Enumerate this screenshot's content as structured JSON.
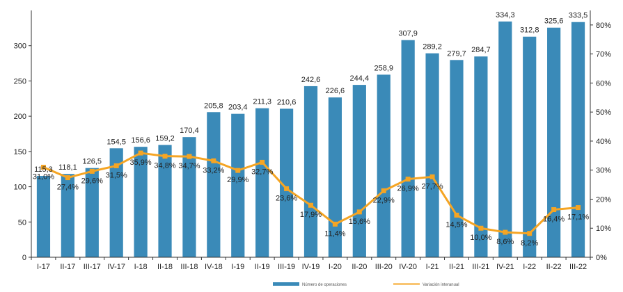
{
  "chart_data": {
    "type": "bar",
    "categories": [
      "I-17",
      "II-17",
      "III-17",
      "IV-17",
      "I-18",
      "II-18",
      "III-18",
      "IV-18",
      "I-19",
      "II-19",
      "III-19",
      "IV-19",
      "I-20",
      "II-20",
      "III-20",
      "IV-20",
      "I-21",
      "II-21",
      "III-21",
      "IV-21",
      "I-22",
      "II-22",
      "III-22"
    ],
    "series": [
      {
        "name": "Número de operaciones",
        "type": "bar",
        "axis": "left",
        "color": "#3A8AB8",
        "values": [
          115.3,
          118.1,
          126.5,
          154.5,
          156.6,
          159.2,
          170.4,
          205.8,
          203.4,
          211.3,
          210.6,
          242.6,
          226.6,
          244.4,
          258.9,
          307.9,
          289.2,
          279.7,
          284.7,
          334.3,
          312.8,
          325.6,
          333.5
        ],
        "labels": [
          "115,3",
          "118,1",
          "126,5",
          "154,5",
          "156,6",
          "159,2",
          "170,4",
          "205,8",
          "203,4",
          "211,3",
          "210,6",
          "242,6",
          "226,6",
          "244,4",
          "258,9",
          "307,9",
          "289,2",
          "279,7",
          "284,7",
          "334,3",
          "312,8",
          "325,6",
          "333,5"
        ]
      },
      {
        "name": "Variación interanual",
        "type": "line",
        "axis": "right",
        "color": "#F5A524",
        "values": [
          31.0,
          27.4,
          29.6,
          31.5,
          35.9,
          34.8,
          34.7,
          33.2,
          29.9,
          32.7,
          23.6,
          17.9,
          11.4,
          15.6,
          22.9,
          26.9,
          27.7,
          14.5,
          10.0,
          8.6,
          8.2,
          16.4,
          17.1
        ],
        "labels": [
          "31,0%",
          "27,4%",
          "29,6%",
          "31,5%",
          "35,9%",
          "34,8%",
          "34,7%",
          "33,2%",
          "29,9%",
          "32,7%",
          "23,6%",
          "17,9%",
          "11,4%",
          "15,6%",
          "22,9%",
          "26,9%",
          "27,7%",
          "14,5%",
          "10,0%",
          "8,6%",
          "8,2%",
          "16,4%",
          "17,1%"
        ]
      }
    ],
    "left_axis": {
      "min": 0,
      "max": 350,
      "ticks": [
        0,
        50,
        100,
        150,
        200,
        250,
        300
      ],
      "tick_labels": [
        "0",
        "50",
        "100",
        "150",
        "200",
        "250",
        "300"
      ]
    },
    "right_axis": {
      "min": 0,
      "max": 85,
      "ticks": [
        0,
        10,
        20,
        30,
        40,
        50,
        60,
        70,
        80
      ],
      "tick_labels": [
        "0%",
        "10%",
        "20%",
        "30%",
        "40%",
        "50%",
        "60%",
        "70%",
        "80%"
      ]
    },
    "grid": false,
    "legend": {
      "placement": "bottom",
      "items": [
        "Número de operaciones",
        "Variación interanual"
      ]
    }
  }
}
